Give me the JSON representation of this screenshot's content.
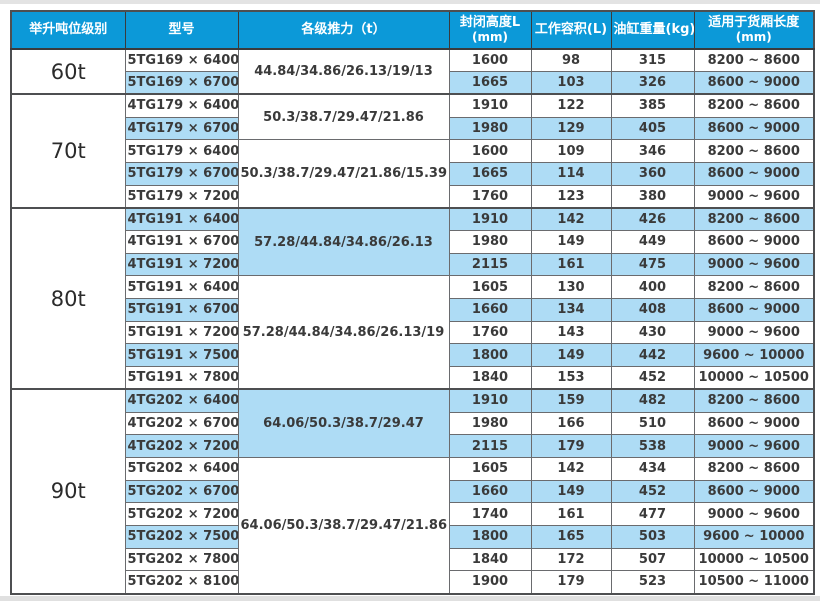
{
  "colors": {
    "header_bg": "#0c99d8",
    "header_text": "#ffffff",
    "row_highlight": "#aedcf5",
    "row_plain": "#ffffff",
    "border": "#6a6b6e",
    "border_strong": "#4e4f51",
    "cell_text": "#3a3a3a"
  },
  "table": {
    "columns": [
      {
        "key": "tonnage",
        "label": "举升吨位级别"
      },
      {
        "key": "model",
        "label": "型号"
      },
      {
        "key": "thrust",
        "label": "各级推力（t）"
      },
      {
        "key": "height",
        "label": "封闭高度L",
        "sub": "(mm)"
      },
      {
        "key": "volume",
        "label": "工作容积(L)"
      },
      {
        "key": "weight",
        "label": "油缸重量(kg)"
      },
      {
        "key": "range",
        "label": "适用于货厢长度",
        "sub": "(mm)"
      }
    ],
    "groups": [
      {
        "tonnage": "60t",
        "subgroups": [
          {
            "thrust": "44.84/34.86/26.13/19/13",
            "thrust_blue": false,
            "rows": [
              {
                "model": "5TG169 × 6400",
                "height": "1600",
                "volume": "98",
                "weight": "315",
                "range": "8200 ~ 8600",
                "blue": false
              },
              {
                "model": "5TG169 × 6700",
                "height": "1665",
                "volume": "103",
                "weight": "326",
                "range": "8600 ~ 9000",
                "blue": true
              }
            ]
          }
        ]
      },
      {
        "tonnage": "70t",
        "subgroups": [
          {
            "thrust": "50.3/38.7/29.47/21.86",
            "thrust_blue": false,
            "rows": [
              {
                "model": "4TG179 × 6400",
                "height": "1910",
                "volume": "122",
                "weight": "385",
                "range": "8200 ~ 8600",
                "blue": false
              },
              {
                "model": "4TG179 × 6700",
                "height": "1980",
                "volume": "129",
                "weight": "405",
                "range": "8600 ~ 9000",
                "blue": true
              }
            ]
          },
          {
            "thrust": "50.3/38.7/29.47/21.86/15.39",
            "thrust_blue": false,
            "rows": [
              {
                "model": "5TG179 × 6400",
                "height": "1600",
                "volume": "109",
                "weight": "346",
                "range": "8200 ~ 8600",
                "blue": false
              },
              {
                "model": "5TG179 × 6700",
                "height": "1665",
                "volume": "114",
                "weight": "360",
                "range": "8600 ~ 9000",
                "blue": true
              },
              {
                "model": "5TG179 × 7200",
                "height": "1760",
                "volume": "123",
                "weight": "380",
                "range": "9000 ~ 9600",
                "blue": false
              }
            ]
          }
        ]
      },
      {
        "tonnage": "80t",
        "subgroups": [
          {
            "thrust": "57.28/44.84/34.86/26.13",
            "thrust_blue": true,
            "rows": [
              {
                "model": "4TG191 × 6400",
                "height": "1910",
                "volume": "142",
                "weight": "426",
                "range": "8200 ~ 8600",
                "blue": true
              },
              {
                "model": "4TG191 × 6700",
                "height": "1980",
                "volume": "149",
                "weight": "449",
                "range": "8600 ~ 9000",
                "blue": false
              },
              {
                "model": "4TG191 × 7200",
                "height": "2115",
                "volume": "161",
                "weight": "475",
                "range": "9000 ~ 9600",
                "blue": true
              }
            ]
          },
          {
            "thrust": "57.28/44.84/34.86/26.13/19",
            "thrust_blue": false,
            "rows": [
              {
                "model": "5TG191 × 6400",
                "height": "1605",
                "volume": "130",
                "weight": "400",
                "range": "8200 ~ 8600",
                "blue": false
              },
              {
                "model": "5TG191 × 6700",
                "height": "1660",
                "volume": "134",
                "weight": "408",
                "range": "8600 ~ 9000",
                "blue": true
              },
              {
                "model": "5TG191 × 7200",
                "height": "1760",
                "volume": "143",
                "weight": "430",
                "range": "9000 ~ 9600",
                "blue": false
              },
              {
                "model": "5TG191 × 7500",
                "height": "1800",
                "volume": "149",
                "weight": "442",
                "range": "9600 ~ 10000",
                "blue": true
              },
              {
                "model": "5TG191 × 7800",
                "height": "1840",
                "volume": "153",
                "weight": "452",
                "range": "10000 ~ 10500",
                "blue": false
              }
            ]
          }
        ]
      },
      {
        "tonnage": "90t",
        "subgroups": [
          {
            "thrust": "64.06/50.3/38.7/29.47",
            "thrust_blue": true,
            "rows": [
              {
                "model": "4TG202 × 6400",
                "height": "1910",
                "volume": "159",
                "weight": "482",
                "range": "8200 ~ 8600",
                "blue": true
              },
              {
                "model": "4TG202 × 6700",
                "height": "1980",
                "volume": "166",
                "weight": "510",
                "range": "8600 ~ 9000",
                "blue": false
              },
              {
                "model": "4TG202 × 7200",
                "height": "2115",
                "volume": "179",
                "weight": "538",
                "range": "9000 ~ 9600",
                "blue": true
              }
            ]
          },
          {
            "thrust": "64.06/50.3/38.7/29.47/21.86",
            "thrust_blue": false,
            "rows": [
              {
                "model": "5TG202 × 6400",
                "height": "1605",
                "volume": "142",
                "weight": "434",
                "range": "8200 ~ 8600",
                "blue": false
              },
              {
                "model": "5TG202 × 6700",
                "height": "1660",
                "volume": "149",
                "weight": "452",
                "range": "8600 ~ 9000",
                "blue": true
              },
              {
                "model": "5TG202 × 7200",
                "height": "1740",
                "volume": "161",
                "weight": "477",
                "range": "9000 ~ 9600",
                "blue": false
              },
              {
                "model": "5TG202 × 7500",
                "height": "1800",
                "volume": "165",
                "weight": "503",
                "range": "9600 ~ 10000",
                "blue": true
              },
              {
                "model": "5TG202 × 7800",
                "height": "1840",
                "volume": "172",
                "weight": "507",
                "range": "10000 ~ 10500",
                "blue": false
              },
              {
                "model": "5TG202 × 8100",
                "height": "1900",
                "volume": "179",
                "weight": "523",
                "range": "10500 ~ 11000",
                "blue": false
              }
            ]
          }
        ]
      }
    ]
  }
}
